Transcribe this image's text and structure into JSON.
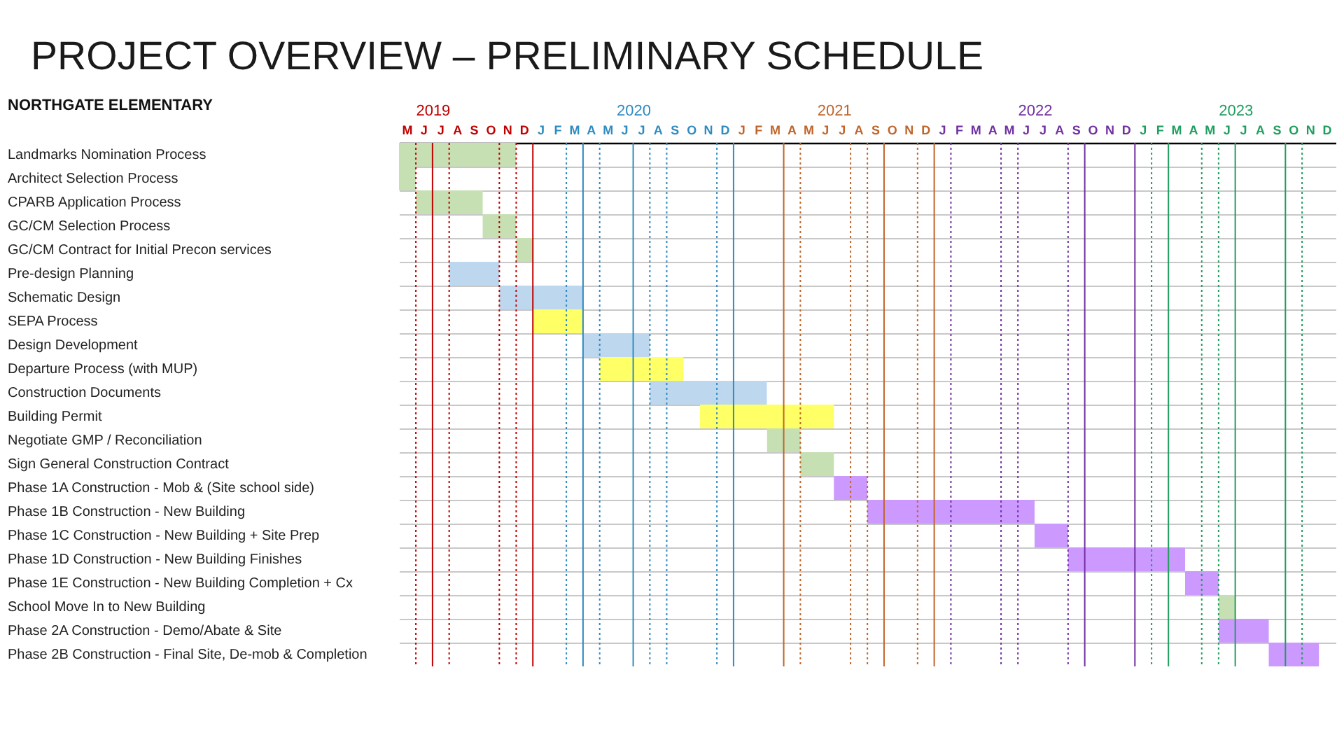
{
  "chart_data": {
    "type": "bar",
    "orientation": "horizontal",
    "title": "PROJECT OVERVIEW – PRELIMINARY SCHEDULE",
    "ylabel": "NORTHGATE ELEMENTARY",
    "categories": [
      "Landmarks Nomination Process",
      "Architect Selection Process",
      "CPARB Application Process",
      "GC/CM Selection Process",
      "GC/CM Contract for Initial Precon services",
      "Pre-design Planning",
      "Schematic Design",
      "SEPA Process",
      "Design Development",
      "Departure Process (with MUP)",
      "Construction Documents",
      "Building Permit",
      "Negotiate GMP / Reconciliation",
      "Sign General Construction Contract",
      "Phase 1A Construction - Mob & (Site school side)",
      "Phase 1B Construction - New Building",
      "Phase 1C Construction - New Building + Site Prep",
      "Phase 1D Construction - New Building Finishes",
      "Phase 1E Construction - New Building Completion + Cx",
      "School Move In to New Building",
      "Phase 2A Construction - Demo/Abate & Site",
      "Phase 2B Construction - Final Site, De-mob & Completion"
    ],
    "base": [
      2019.333,
      2019.333,
      2019.417,
      2019.75,
      2019.917,
      2019.583,
      2019.833,
      2020.0,
      2020.25,
      2020.333,
      2020.583,
      2020.833,
      2021.167,
      2021.333,
      2021.5,
      2021.667,
      2022.5,
      2022.667,
      2023.25,
      2023.417,
      2023.417,
      2023.667
    ],
    "values": [
      0.583,
      0.083,
      0.333,
      0.167,
      0.083,
      0.25,
      0.417,
      0.25,
      0.333,
      0.417,
      0.583,
      0.667,
      0.167,
      0.167,
      0.167,
      0.833,
      0.167,
      0.583,
      0.167,
      0.083,
      0.25,
      0.25
    ],
    "colors": [
      "#c6e0b4",
      "#c6e0b4",
      "#c6e0b4",
      "#c6e0b4",
      "#c6e0b4",
      "#bdd7ee",
      "#bdd7ee",
      "#ffff66",
      "#bdd7ee",
      "#ffff66",
      "#bdd7ee",
      "#ffff66",
      "#c6e0b4",
      "#c6e0b4",
      "#cc99ff",
      "#cc99ff",
      "#cc99ff",
      "#cc99ff",
      "#cc99ff",
      "#c6e0b4",
      "#cc99ff",
      "#cc99ff"
    ],
    "xlim": [
      2019.333,
      2024
    ],
    "xticks": [
      {
        "value": 2019.5,
        "label": "2019"
      },
      {
        "value": 2020.5,
        "label": "2020"
      },
      {
        "value": 2021.5,
        "label": "2021"
      },
      {
        "value": 2022.5,
        "label": "2022"
      },
      {
        "value": 2023.5,
        "label": "2023"
      }
    ],
    "annotations": [
      "M",
      "J",
      "J",
      "A",
      "S",
      "O",
      "N",
      "D",
      "J",
      "F",
      "M",
      "A",
      "M",
      "J",
      "J",
      "A",
      "S",
      "O",
      "N",
      "D",
      "J",
      "F",
      "M",
      "A",
      "M",
      "J",
      "J",
      "A",
      "S",
      "O",
      "N",
      "D",
      "J",
      "F",
      "M",
      "A",
      "M",
      "J",
      "J",
      "A",
      "S",
      "O",
      "N",
      "D",
      "J",
      "F",
      "M",
      "A",
      "M",
      "J",
      "J",
      "A",
      "S",
      "O",
      "N",
      "D"
    ],
    "ref_lines": [
      {
        "axis": "x",
        "value": 2019.417,
        "color": "#c00000",
        "line_style": "dotted"
      },
      {
        "axis": "x",
        "value": 2019.5,
        "color": "#c00000",
        "line_style": "solid"
      },
      {
        "axis": "x",
        "value": 2019.583,
        "color": "#c00000",
        "line_style": "dotted"
      },
      {
        "axis": "x",
        "value": 2019.833,
        "color": "#c00000",
        "line_style": "dotted"
      },
      {
        "axis": "x",
        "value": 2019.917,
        "color": "#c00000",
        "line_style": "dotted"
      },
      {
        "axis": "x",
        "value": 2020.0,
        "color": "#c00000",
        "line_style": "solid"
      },
      {
        "axis": "x",
        "value": 2020.167,
        "color": "#2e8bc0",
        "line_style": "dotted"
      },
      {
        "axis": "x",
        "value": 2020.25,
        "color": "#2e8bc0",
        "line_style": "solid"
      },
      {
        "axis": "x",
        "value": 2020.333,
        "color": "#2e8bc0",
        "line_style": "dotted"
      },
      {
        "axis": "x",
        "value": 2020.5,
        "color": "#2e8bc0",
        "line_style": "solid"
      },
      {
        "axis": "x",
        "value": 2020.583,
        "color": "#2e8bc0",
        "line_style": "dotted"
      },
      {
        "axis": "x",
        "value": 2020.667,
        "color": "#2e8bc0",
        "line_style": "dotted"
      },
      {
        "axis": "x",
        "value": 2020.917,
        "color": "#2e8bc0",
        "line_style": "dotted"
      },
      {
        "axis": "x",
        "value": 2021.0,
        "color": "#2e8bc0",
        "line_style": "solid"
      },
      {
        "axis": "x",
        "value": 2021.25,
        "color": "#c0652a",
        "line_style": "solid"
      },
      {
        "axis": "x",
        "value": 2021.333,
        "color": "#c0652a",
        "line_style": "dotted"
      },
      {
        "axis": "x",
        "value": 2021.583,
        "color": "#c0652a",
        "line_style": "dotted"
      },
      {
        "axis": "x",
        "value": 2021.667,
        "color": "#c0652a",
        "line_style": "dotted"
      },
      {
        "axis": "x",
        "value": 2021.75,
        "color": "#c0652a",
        "line_style": "solid"
      },
      {
        "axis": "x",
        "value": 2021.917,
        "color": "#c0652a",
        "line_style": "dotted"
      },
      {
        "axis": "x",
        "value": 2022.0,
        "color": "#c0652a",
        "line_style": "solid"
      },
      {
        "axis": "x",
        "value": 2022.083,
        "color": "#7030a0",
        "line_style": "dotted"
      },
      {
        "axis": "x",
        "value": 2022.333,
        "color": "#7030a0",
        "line_style": "dotted"
      },
      {
        "axis": "x",
        "value": 2022.417,
        "color": "#7030a0",
        "line_style": "dotted"
      },
      {
        "axis": "x",
        "value": 2022.667,
        "color": "#7030a0",
        "line_style": "dotted"
      },
      {
        "axis": "x",
        "value": 2022.75,
        "color": "#7030a0",
        "line_style": "solid"
      },
      {
        "axis": "x",
        "value": 2023.0,
        "color": "#7030a0",
        "line_style": "solid"
      },
      {
        "axis": "x",
        "value": 2023.083,
        "color": "#1f9e5e",
        "line_style": "dotted"
      },
      {
        "axis": "x",
        "value": 2023.167,
        "color": "#1f9e5e",
        "line_style": "solid"
      },
      {
        "axis": "x",
        "value": 2023.333,
        "color": "#1f9e5e",
        "line_style": "dotted"
      },
      {
        "axis": "x",
        "value": 2023.417,
        "color": "#1f9e5e",
        "line_style": "dotted"
      },
      {
        "axis": "x",
        "value": 2023.5,
        "color": "#1f9e5e",
        "line_style": "solid"
      },
      {
        "axis": "x",
        "value": 2023.75,
        "color": "#1f9e5e",
        "line_style": "solid"
      },
      {
        "axis": "x",
        "value": 2023.833,
        "color": "#1f9e5e",
        "line_style": "dotted"
      }
    ],
    "grid": "y"
  }
}
